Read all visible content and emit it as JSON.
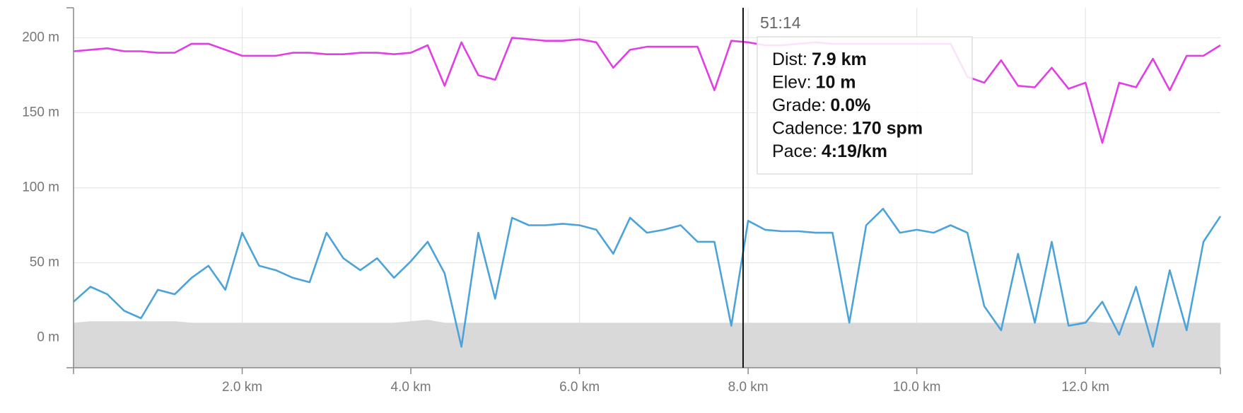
{
  "chart_data": {
    "type": "line",
    "x": [
      0,
      0.2,
      0.4,
      0.6,
      0.8,
      1,
      1.2,
      1.4,
      1.6,
      1.8,
      2,
      2.2,
      2.4,
      2.6,
      2.8,
      3,
      3.2,
      3.4,
      3.6,
      3.8,
      4,
      4.2,
      4.4,
      4.6,
      4.8,
      5,
      5.2,
      5.4,
      5.6,
      5.8,
      6,
      6.2,
      6.4,
      6.6,
      6.8,
      7,
      7.2,
      7.4,
      7.6,
      7.8,
      8,
      8.2,
      8.4,
      8.6,
      8.8,
      9,
      9.2,
      9.4,
      9.6,
      9.8,
      10,
      10.2,
      10.4,
      10.6,
      10.8,
      11,
      11.2,
      11.4,
      11.6,
      11.8,
      12,
      12.2,
      12.4,
      12.6,
      12.8,
      13,
      13.2,
      13.4,
      13.6
    ],
    "series": [
      {
        "type": "area",
        "color": "#d9d9d9",
        "values": [
          10,
          11,
          11,
          11,
          11,
          11,
          11,
          10,
          10,
          10,
          10,
          10,
          10,
          10,
          10,
          10,
          10,
          10,
          10,
          10,
          11,
          12,
          10,
          10,
          10,
          10,
          10,
          10,
          10,
          10,
          10,
          10,
          10,
          10,
          10,
          10,
          10,
          10,
          10,
          10,
          10,
          10,
          10,
          10,
          10,
          10,
          10,
          10,
          10,
          10,
          10,
          10,
          10,
          10,
          10,
          10,
          10,
          10,
          10,
          10,
          11,
          10,
          10,
          10,
          10,
          10,
          10,
          10,
          10
        ]
      },
      {
        "type": "line",
        "color": "#e23ee6",
        "values": [
          191,
          192,
          193,
          191,
          191,
          190,
          190,
          196,
          196,
          192,
          188,
          188,
          188,
          190,
          190,
          189,
          189,
          190,
          190,
          189,
          190,
          195,
          168,
          197,
          175,
          172,
          200,
          199,
          198,
          198,
          199,
          197,
          180,
          192,
          194,
          194,
          194,
          194,
          165,
          198,
          197,
          195,
          195,
          196,
          197,
          196,
          196,
          196,
          196,
          196,
          196,
          196,
          196,
          174,
          170,
          185,
          168,
          167,
          180,
          166,
          170,
          130,
          170,
          167,
          186,
          165,
          188,
          188,
          195
        ]
      },
      {
        "type": "line",
        "color": "#4ba3d9",
        "values": [
          24,
          34,
          29,
          18,
          13,
          32,
          29,
          40,
          48,
          32,
          70,
          48,
          45,
          40,
          37,
          70,
          53,
          45,
          53,
          40,
          51,
          64,
          43,
          -6,
          70,
          26,
          80,
          75,
          75,
          76,
          75,
          72,
          56,
          80,
          70,
          72,
          75,
          64,
          64,
          8,
          78,
          72,
          71,
          71,
          70,
          70,
          10,
          75,
          86,
          70,
          72,
          70,
          75,
          70,
          21,
          5,
          56,
          10,
          64,
          8,
          10,
          24,
          2,
          34,
          -6,
          45,
          5,
          64,
          81
        ]
      }
    ],
    "xlim": [
      0,
      13.6
    ],
    "xticks": [
      {
        "value": 2,
        "label": "2.0 km"
      },
      {
        "value": 4,
        "label": "4.0 km"
      },
      {
        "value": 6,
        "label": "6.0 km"
      },
      {
        "value": 8,
        "label": "8.0 km"
      },
      {
        "value": 10,
        "label": "10.0 km"
      },
      {
        "value": 12,
        "label": "12.0 km"
      }
    ],
    "ylim": [
      -20,
      220
    ],
    "yticks": [
      {
        "value": 0,
        "label": "0 m"
      },
      {
        "value": 50,
        "label": "50 m"
      },
      {
        "value": 100,
        "label": "100 m"
      },
      {
        "value": 150,
        "label": "150 m"
      },
      {
        "value": 200,
        "label": "200 m"
      }
    ],
    "grid": true,
    "cursor": {
      "x": 7.94,
      "time": "51:14",
      "rows": [
        {
          "label": "Dist:",
          "value": "7.9 km"
        },
        {
          "label": "Elev:",
          "value": "10 m"
        },
        {
          "label": "Grade:",
          "value": "0.0%"
        },
        {
          "label": "Cadence:",
          "value": "170 spm"
        },
        {
          "label": "Pace:",
          "value": "4:19/km"
        }
      ]
    }
  }
}
